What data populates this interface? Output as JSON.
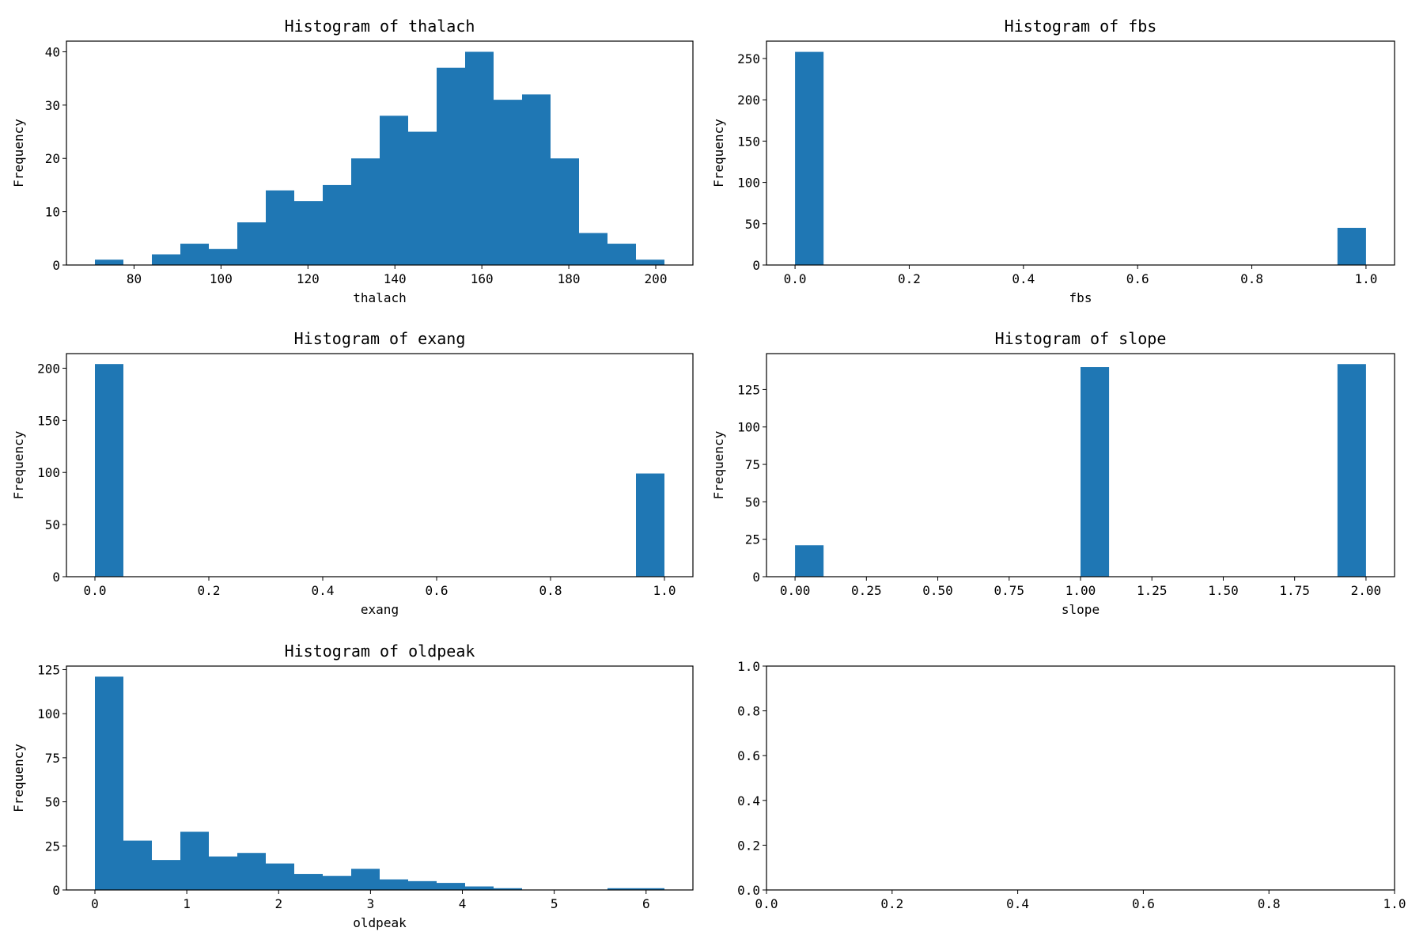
{
  "figure": {
    "bar_color": "#1f77b4",
    "frame_color": "#000000",
    "background": "#ffffff"
  },
  "chart_data": [
    {
      "type": "bar",
      "title": "Histogram of thalach",
      "xlabel": "thalach",
      "ylabel": "Frequency",
      "xlim": [
        64.45,
        208.55
      ],
      "ylim": [
        0,
        42
      ],
      "xticks": [
        80,
        100,
        120,
        140,
        160,
        180,
        200
      ],
      "xticklabels": [
        "80",
        "100",
        "120",
        "140",
        "160",
        "180",
        "200"
      ],
      "yticks": [
        0,
        10,
        20,
        30,
        40
      ],
      "yticklabels": [
        "0",
        "10",
        "20",
        "30",
        "40"
      ],
      "bin_edges": [
        71,
        77.55,
        84.1,
        90.65,
        97.2,
        103.75,
        110.3,
        116.85,
        123.4,
        129.95,
        136.5,
        143.05,
        149.6,
        156.15,
        162.7,
        169.25,
        175.8,
        182.35,
        188.9,
        195.45,
        202
      ],
      "values": [
        1,
        0,
        2,
        4,
        3,
        8,
        14,
        12,
        15,
        20,
        28,
        25,
        37,
        40,
        31,
        32,
        20,
        6,
        4,
        1
      ],
      "grid": false
    },
    {
      "type": "bar",
      "title": "Histogram of fbs",
      "xlabel": "fbs",
      "ylabel": "Frequency",
      "xlim": [
        -0.05,
        1.05
      ],
      "ylim": [
        0,
        271
      ],
      "xticks": [
        0,
        0.2,
        0.4,
        0.6,
        0.8,
        1
      ],
      "xticklabels": [
        "0.0",
        "0.2",
        "0.4",
        "0.6",
        "0.8",
        "1.0"
      ],
      "yticks": [
        0,
        50,
        100,
        150,
        200,
        250
      ],
      "yticklabels": [
        "0",
        "50",
        "100",
        "150",
        "200",
        "250"
      ],
      "bin_edges": [
        0,
        0.05,
        0.1,
        0.15,
        0.2,
        0.25,
        0.3,
        0.35,
        0.4,
        0.45,
        0.5,
        0.55,
        0.6,
        0.65,
        0.7,
        0.75,
        0.8,
        0.85,
        0.9,
        0.95,
        1
      ],
      "values": [
        258,
        0,
        0,
        0,
        0,
        0,
        0,
        0,
        0,
        0,
        0,
        0,
        0,
        0,
        0,
        0,
        0,
        0,
        0,
        45
      ],
      "grid": false
    },
    {
      "type": "bar",
      "title": "Histogram of exang",
      "xlabel": "exang",
      "ylabel": "Frequency",
      "xlim": [
        -0.05,
        1.05
      ],
      "ylim": [
        0,
        214
      ],
      "xticks": [
        0,
        0.2,
        0.4,
        0.6,
        0.8,
        1
      ],
      "xticklabels": [
        "0.0",
        "0.2",
        "0.4",
        "0.6",
        "0.8",
        "1.0"
      ],
      "yticks": [
        0,
        50,
        100,
        150,
        200
      ],
      "yticklabels": [
        "0",
        "50",
        "100",
        "150",
        "200"
      ],
      "bin_edges": [
        0,
        0.05,
        0.1,
        0.15,
        0.2,
        0.25,
        0.3,
        0.35,
        0.4,
        0.45,
        0.5,
        0.55,
        0.6,
        0.65,
        0.7,
        0.75,
        0.8,
        0.85,
        0.9,
        0.95,
        1
      ],
      "values": [
        204,
        0,
        0,
        0,
        0,
        0,
        0,
        0,
        0,
        0,
        0,
        0,
        0,
        0,
        0,
        0,
        0,
        0,
        0,
        99
      ],
      "grid": false
    },
    {
      "type": "bar",
      "title": "Histogram of slope",
      "xlabel": "slope",
      "ylabel": "Frequency",
      "xlim": [
        -0.1,
        2.1
      ],
      "ylim": [
        0,
        149
      ],
      "xticks": [
        0,
        0.25,
        0.5,
        0.75,
        1,
        1.25,
        1.5,
        1.75,
        2
      ],
      "xticklabels": [
        "0.00",
        "0.25",
        "0.50",
        "0.75",
        "1.00",
        "1.25",
        "1.50",
        "1.75",
        "2.00"
      ],
      "yticks": [
        0,
        25,
        50,
        75,
        100,
        125
      ],
      "yticklabels": [
        "0",
        "25",
        "50",
        "75",
        "100",
        "125"
      ],
      "bin_edges": [
        0,
        0.1,
        0.2,
        0.3,
        0.4,
        0.5,
        0.6,
        0.7,
        0.8,
        0.9,
        1,
        1.1,
        1.2,
        1.3,
        1.4,
        1.5,
        1.6,
        1.7,
        1.8,
        1.9,
        2
      ],
      "values": [
        21,
        0,
        0,
        0,
        0,
        0,
        0,
        0,
        0,
        0,
        140,
        0,
        0,
        0,
        0,
        0,
        0,
        0,
        0,
        142
      ],
      "grid": false
    },
    {
      "type": "bar",
      "title": "Histogram of oldpeak",
      "xlabel": "oldpeak",
      "ylabel": "Frequency",
      "xlim": [
        -0.31,
        6.51
      ],
      "ylim": [
        0,
        127
      ],
      "xticks": [
        0,
        1,
        2,
        3,
        4,
        5,
        6
      ],
      "xticklabels": [
        "0",
        "1",
        "2",
        "3",
        "4",
        "5",
        "6"
      ],
      "yticks": [
        0,
        25,
        50,
        75,
        100,
        125
      ],
      "yticklabels": [
        "0",
        "25",
        "50",
        "75",
        "100",
        "125"
      ],
      "bin_edges": [
        0,
        0.31,
        0.62,
        0.93,
        1.24,
        1.55,
        1.86,
        2.17,
        2.48,
        2.79,
        3.1,
        3.41,
        3.72,
        4.03,
        4.34,
        4.65,
        4.96,
        5.27,
        5.58,
        5.89,
        6.2
      ],
      "values": [
        121,
        28,
        17,
        33,
        19,
        21,
        15,
        9,
        8,
        12,
        6,
        5,
        4,
        2,
        1,
        0,
        0,
        0,
        1,
        1
      ],
      "grid": false
    },
    {
      "type": "bar",
      "title": "",
      "xlabel": "",
      "ylabel": "",
      "xlim": [
        0,
        1
      ],
      "ylim": [
        0,
        1
      ],
      "xticks": [
        0,
        0.2,
        0.4,
        0.6,
        0.8,
        1
      ],
      "xticklabels": [
        "0.0",
        "0.2",
        "0.4",
        "0.6",
        "0.8",
        "1.0"
      ],
      "yticks": [
        0,
        0.2,
        0.4,
        0.6,
        0.8,
        1
      ],
      "yticklabels": [
        "0.0",
        "0.2",
        "0.4",
        "0.6",
        "0.8",
        "1.0"
      ],
      "bin_edges": [],
      "values": [],
      "grid": false
    }
  ]
}
